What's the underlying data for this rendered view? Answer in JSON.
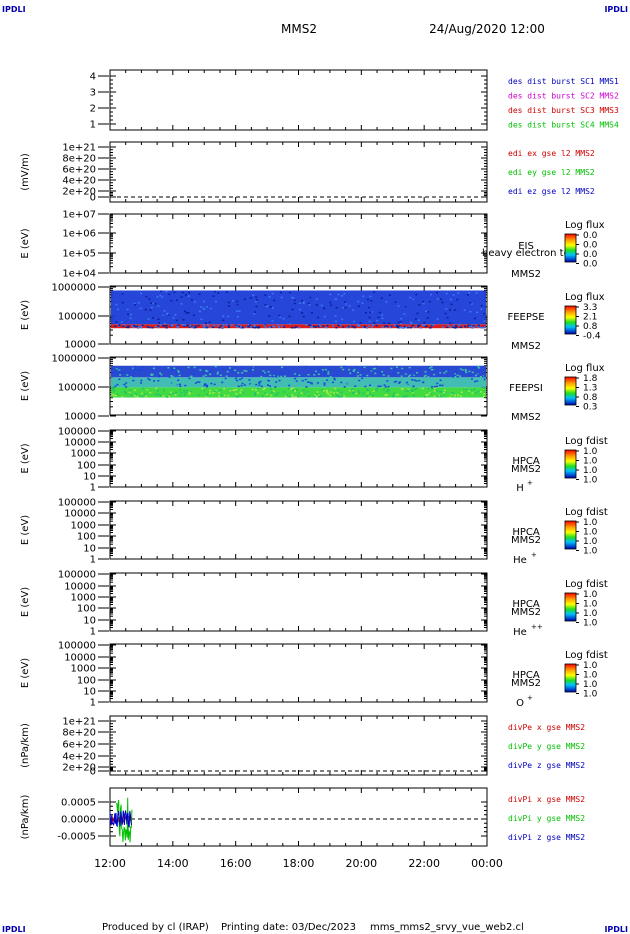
{
  "corner_marks": {
    "top_left": "IPDLI",
    "top_right": "IPDLI",
    "bottom_left": "IPDLI",
    "bottom_right": "IPDLI"
  },
  "header": {
    "mission": "MMS2",
    "datetime": "24/Aug/2020 12:00"
  },
  "footer": {
    "produced": "Produced by cl (IRAP)",
    "printing": "Printing date: 03/Dec/2023",
    "script": "mms_mms2_srvy_vue_web2.cl"
  },
  "chart_data": [
    {
      "type": "line",
      "panel": "des",
      "ylabel": "",
      "yticks": [
        "4",
        "3",
        "2",
        "1"
      ],
      "ylim": [
        0.5,
        4.5
      ],
      "series": [
        {
          "name": "des dist burst SC1 MMS1",
          "color": "#0000c0",
          "x": [],
          "y": []
        },
        {
          "name": "des dist burst SC2 MMS2",
          "color": "#d000d0",
          "x": [],
          "y": []
        },
        {
          "name": "des dist burst SC3 MMS3",
          "color": "#d00000",
          "x": [],
          "y": []
        },
        {
          "name": "des dist burst SC4 MMS4",
          "color": "#00c000",
          "x": [],
          "y": []
        }
      ]
    },
    {
      "type": "line",
      "panel": "edi",
      "ylabel": "(mV/m)",
      "yticks": [
        "1e+21",
        "8e+20",
        "6e+20",
        "4e+20",
        "2e+20",
        "0"
      ],
      "ylim": [
        0,
        1e+21
      ],
      "zero_line": true,
      "series": [
        {
          "name": "edi ex gse l2 MMS2",
          "color": "#d00000",
          "x": [],
          "y": []
        },
        {
          "name": "edi ey gse l2 MMS2",
          "color": "#00c000",
          "x": [],
          "y": []
        },
        {
          "name": "edi ez gse l2 MMS2",
          "color": "#0000c0",
          "x": [],
          "y": []
        }
      ]
    },
    {
      "type": "heatmap",
      "panel": "eis",
      "ylabel": "E (eV)",
      "yticks": [
        "1e+07",
        "1e+06",
        "1e+05",
        "1e+04"
      ],
      "ylog": true,
      "instrument": "EIS",
      "sub": "heavy electron to",
      "spacecraft": "MMS2",
      "colorbar_title": "Log flux",
      "colorbar_ticks": [
        "0.0",
        "0.0",
        "0.0",
        "0.0"
      ],
      "data": "empty"
    },
    {
      "type": "heatmap",
      "panel": "feepse",
      "ylabel": "E (eV)",
      "yticks": [
        "1000000",
        "100000",
        "10000"
      ],
      "ylog": true,
      "ylim": [
        10000,
        1000000
      ],
      "instrument": "FEEPSE",
      "spacecraft": "MMS2",
      "colorbar_title": "Log flux",
      "colorbar_ticks": [
        "3.3",
        "2.1",
        "0.8",
        "-0.4"
      ],
      "bands": [
        {
          "e_low": 35000,
          "e_high": 48000,
          "level": "high",
          "color": "#d81010"
        },
        {
          "e_low": 48000,
          "e_high": 700000,
          "level": "low",
          "color": "#1a3cd8"
        }
      ],
      "x_range_hours": [
        12.0,
        24.0
      ]
    },
    {
      "type": "heatmap",
      "panel": "feepsi",
      "ylabel": "E (eV)",
      "yticks": [
        "1000000",
        "100000",
        "10000"
      ],
      "ylog": true,
      "ylim": [
        10000,
        1000000
      ],
      "instrument": "FEEPSI",
      "spacecraft": "MMS2",
      "colorbar_title": "Log flux",
      "colorbar_ticks": [
        "1.8",
        "1.3",
        "0.8",
        "0.3"
      ],
      "bands": [
        {
          "e_low": 40000,
          "e_high": 90000,
          "level": "high",
          "color": "#38d838"
        },
        {
          "e_low": 90000,
          "e_high": 200000,
          "level": "mid",
          "color": "#38b8b0"
        },
        {
          "e_low": 200000,
          "e_high": 500000,
          "level": "low",
          "color": "#2040d0"
        }
      ],
      "x_range_hours": [
        12.0,
        24.0
      ]
    },
    {
      "type": "heatmap",
      "panel": "hpca_h",
      "ylabel": "E (eV)",
      "yticks": [
        "100000",
        "10000",
        "1000",
        "100",
        "10",
        "1"
      ],
      "ylog": true,
      "instrument": "HPCA",
      "spacecraft": "MMS2",
      "species": "H",
      "species_charge": "+",
      "colorbar_title": "Log fdist",
      "colorbar_ticks": [
        "1.0",
        "1.0",
        "1.0",
        "1.0"
      ],
      "data": "empty"
    },
    {
      "type": "heatmap",
      "panel": "hpca_he",
      "ylabel": "E (eV)",
      "yticks": [
        "100000",
        "10000",
        "1000",
        "100",
        "10",
        "1"
      ],
      "ylog": true,
      "instrument": "HPCA",
      "spacecraft": "MMS2",
      "species": "He",
      "species_charge": "+",
      "colorbar_title": "Log fdist",
      "colorbar_ticks": [
        "1.0",
        "1.0",
        "1.0",
        "1.0"
      ],
      "data": "empty"
    },
    {
      "type": "heatmap",
      "panel": "hpca_he2",
      "ylabel": "E (eV)",
      "yticks": [
        "100000",
        "10000",
        "1000",
        "100",
        "10",
        "1"
      ],
      "ylog": true,
      "instrument": "HPCA",
      "spacecraft": "MMS2",
      "species": "He",
      "species_charge": "++",
      "colorbar_title": "Log fdist",
      "colorbar_ticks": [
        "1.0",
        "1.0",
        "1.0",
        "1.0"
      ],
      "data": "empty"
    },
    {
      "type": "heatmap",
      "panel": "hpca_o",
      "ylabel": "E (eV)",
      "yticks": [
        "100000",
        "10000",
        "1000",
        "100",
        "10",
        "1"
      ],
      "ylog": true,
      "instrument": "HPCA",
      "spacecraft": "MMS2",
      "species": "O",
      "species_charge": "+",
      "colorbar_title": "Log fdist",
      "colorbar_ticks": [
        "1.0",
        "1.0",
        "1.0",
        "1.0"
      ],
      "data": "empty"
    },
    {
      "type": "line",
      "panel": "divpe",
      "ylabel": "(nPa/km)",
      "yticks": [
        "1e+21",
        "8e+20",
        "6e+20",
        "4e+20",
        "2e+20",
        "0"
      ],
      "ylim": [
        0,
        1e+21
      ],
      "zero_line": true,
      "series": [
        {
          "name": "divPe x gse MMS2",
          "color": "#d00000",
          "x": [],
          "y": []
        },
        {
          "name": "divPe y gse MMS2",
          "color": "#00c000",
          "x": [],
          "y": []
        },
        {
          "name": "divPe z gse MMS2",
          "color": "#0000c0",
          "x": [],
          "y": []
        }
      ]
    },
    {
      "type": "line",
      "panel": "divpi",
      "ylabel": "(nPa/km)",
      "yticks": [
        "0.0005",
        "0.0000",
        "-0.0005"
      ],
      "ylim": [
        -0.0009,
        0.0009
      ],
      "zero_line": true,
      "x_range_hours": [
        12.0,
        24.0
      ],
      "series": [
        {
          "name": "divPi x gse MMS2",
          "color": "#d00000",
          "x_span": [
            12.0,
            12.7
          ],
          "amplitude": 0.0001
        },
        {
          "name": "divPi y gse MMS2",
          "color": "#00c000",
          "x_span": [
            12.2,
            12.7
          ],
          "amplitude": 0.0007
        },
        {
          "name": "divPi z gse MMS2",
          "color": "#0000c0",
          "x_span": [
            12.0,
            12.7
          ],
          "amplitude": 0.00025
        }
      ]
    }
  ],
  "x_axis": {
    "range_hours": [
      12,
      24
    ],
    "tick_labels": [
      "12:00",
      "14:00",
      "16:00",
      "18:00",
      "20:00",
      "22:00",
      "00:00"
    ]
  }
}
